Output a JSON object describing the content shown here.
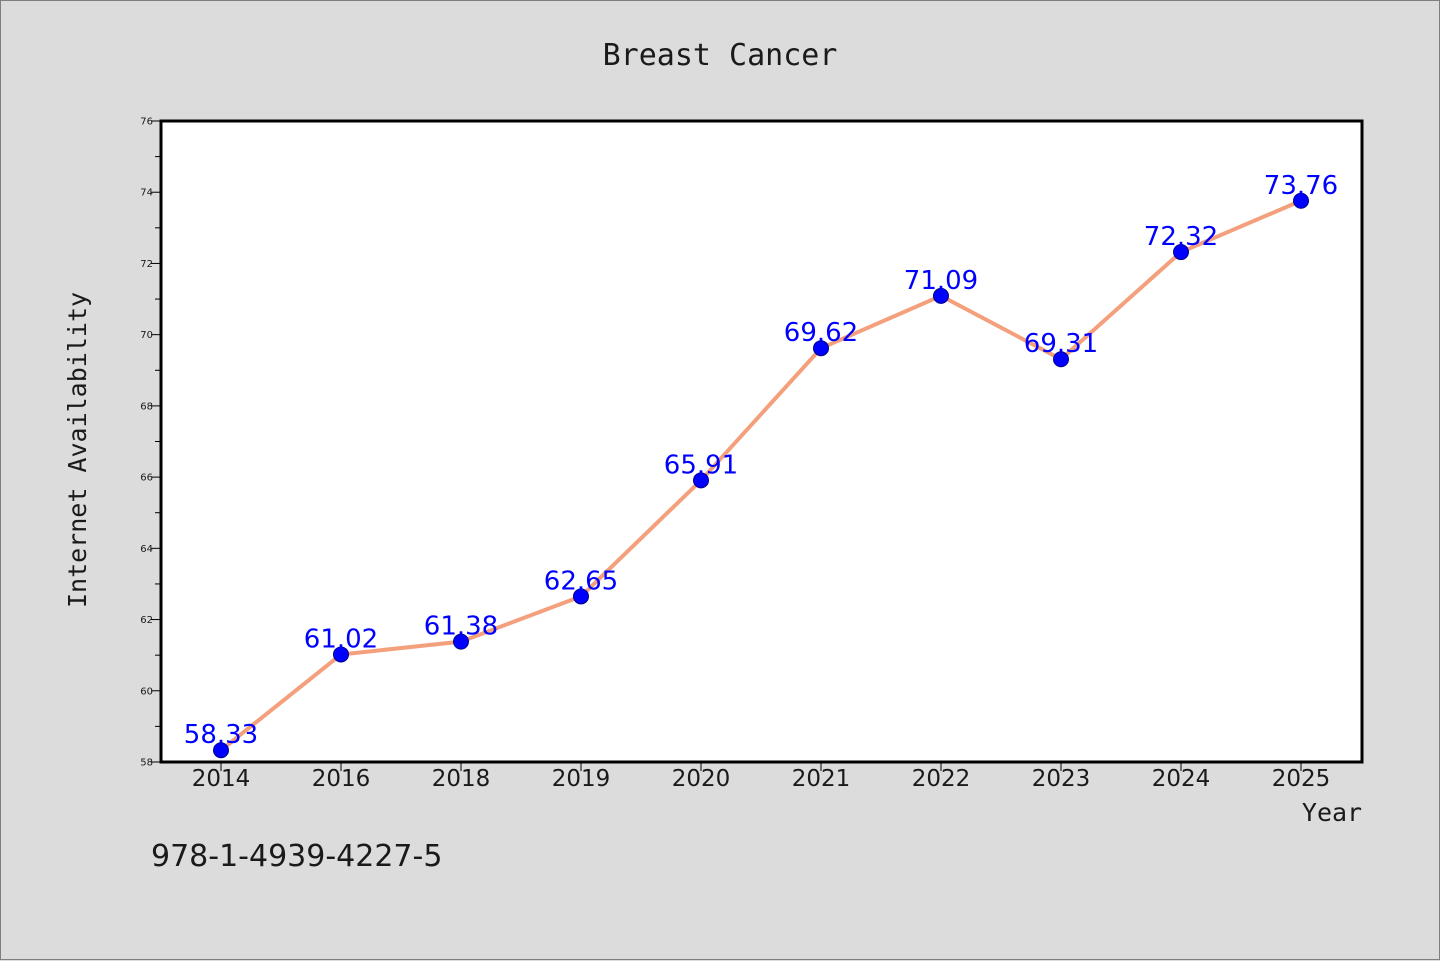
{
  "chart_data": {
    "type": "line",
    "title": "Breast Cancer",
    "xlabel": "Year",
    "ylabel": "Internet Availability",
    "categories": [
      "2014",
      "2016",
      "2018",
      "2019",
      "2020",
      "2021",
      "2022",
      "2023",
      "2024",
      "2025"
    ],
    "series": [
      {
        "values": [
          58.33,
          61.02,
          61.38,
          62.65,
          65.91,
          69.62,
          71.09,
          69.31,
          72.32,
          73.76
        ],
        "labels": [
          "58.33",
          "61.02",
          "61.38",
          "62.65",
          "65.91",
          "69.62",
          "71.09",
          "69.31",
          "72.32",
          "73.76"
        ],
        "line_color": "#f4a07c",
        "marker_color": "#0000ff"
      }
    ],
    "ylim": [
      58,
      76
    ],
    "yticks": [
      "58",
      "60",
      "62",
      "64",
      "66",
      "68",
      "70",
      "72",
      "74",
      "76"
    ],
    "grid": false,
    "legend": "none"
  },
  "footer": {
    "isbn": "978-1-4939-4227-5"
  }
}
